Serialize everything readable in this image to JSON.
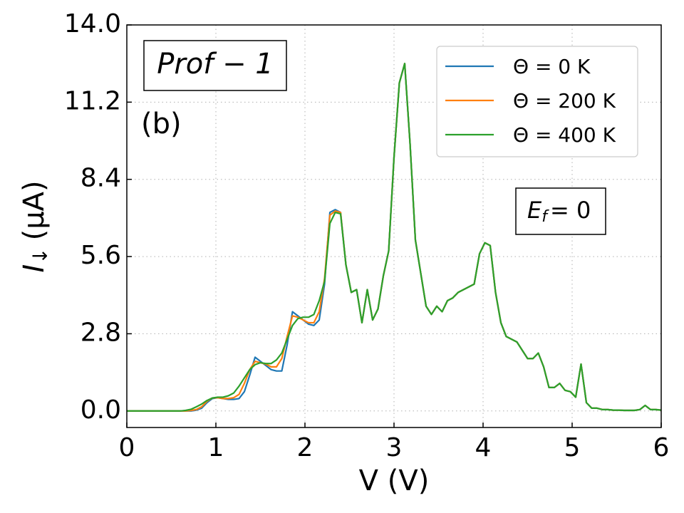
{
  "chart_data": {
    "type": "line",
    "x_label": "V (V)",
    "y_label": {
      "symbol": "I",
      "subscript": "↓",
      "unit": "(μA)"
    },
    "annotations": {
      "profile": "Prof − 1",
      "panel": "(b)",
      "energy": {
        "symbol": "E",
        "subscript": "f",
        "text": "= 0"
      }
    },
    "xlim": [
      0,
      6
    ],
    "xticks": [
      0,
      1,
      2,
      3,
      4,
      5,
      6
    ],
    "ylim": [
      -0.6,
      14
    ],
    "yticks": [
      {
        "value": 0,
        "label": "0.0"
      },
      2.8,
      5.6,
      8.4,
      11.2,
      {
        "value": 14,
        "label": "14.0"
      }
    ],
    "grid": true,
    "legend": "upper right",
    "x": [
      0,
      0.06,
      0.12,
      0.18,
      0.24,
      0.3,
      0.36,
      0.42,
      0.48,
      0.54,
      0.6,
      0.66,
      0.72,
      0.78,
      0.84,
      0.9,
      0.96,
      1.02,
      1.08,
      1.14,
      1.2,
      1.26,
      1.32,
      1.38,
      1.44,
      1.5,
      1.56,
      1.62,
      1.68,
      1.74,
      1.8,
      1.86,
      1.92,
      1.98,
      2.04,
      2.1,
      2.16,
      2.22,
      2.28,
      2.34,
      2.4,
      2.46,
      2.52,
      2.58,
      2.64,
      2.7,
      2.76,
      2.82,
      2.88,
      2.94,
      3.0,
      3.06,
      3.12,
      3.18,
      3.24,
      3.3,
      3.36,
      3.42,
      3.48,
      3.54,
      3.6,
      3.66,
      3.72,
      3.78,
      3.84,
      3.9,
      3.96,
      4.02,
      4.08,
      4.14,
      4.2,
      4.26,
      4.32,
      4.38,
      4.44,
      4.5,
      4.56,
      4.62,
      4.68,
      4.74,
      4.8,
      4.86,
      4.92,
      4.98,
      5.04,
      5.1,
      5.16,
      5.22,
      5.28,
      5.34,
      5.4,
      5.46,
      5.52,
      5.58,
      5.64,
      5.7,
      5.76,
      5.82,
      5.88,
      5.94,
      6.0
    ],
    "series": [
      {
        "name": "Θ = 0 K",
        "color": "#1f77b4",
        "values": [
          0,
          0,
          0,
          0,
          0,
          0,
          0,
          0,
          0,
          0,
          0,
          0,
          0,
          0.03,
          0.1,
          0.3,
          0.45,
          0.48,
          0.45,
          0.42,
          0.42,
          0.45,
          0.7,
          1.3,
          1.95,
          1.8,
          1.65,
          1.5,
          1.45,
          1.45,
          2.4,
          3.6,
          3.45,
          3.3,
          3.15,
          3.1,
          3.3,
          4.6,
          7.2,
          7.3,
          7.2,
          5.3,
          4.3,
          4.4,
          3.2,
          4.4,
          3.3,
          3.7,
          4.9,
          5.8,
          9.2,
          11.9,
          12.6,
          9.7,
          6.2,
          5.0,
          3.8,
          3.5,
          3.8,
          3.6,
          4.0,
          4.1,
          4.3,
          4.4,
          4.5,
          4.6,
          5.7,
          6.1,
          6.0,
          4.3,
          3.2,
          2.7,
          2.6,
          2.5,
          2.2,
          1.9,
          1.9,
          2.1,
          1.6,
          0.85,
          0.85,
          1.0,
          0.75,
          0.7,
          0.5,
          1.7,
          0.3,
          0.1,
          0.1,
          0.05,
          0.05,
          0.03,
          0.03,
          0.02,
          0.02,
          0.02,
          0.05,
          0.2,
          0.05,
          0.05,
          0.03
        ]
      },
      {
        "name": "Θ = 200 K",
        "color": "#ff7f0e",
        "values": [
          0,
          0,
          0,
          0,
          0,
          0,
          0,
          0,
          0,
          0,
          0,
          0,
          0.02,
          0.05,
          0.15,
          0.35,
          0.47,
          0.48,
          0.45,
          0.45,
          0.48,
          0.6,
          1.0,
          1.5,
          1.8,
          1.75,
          1.7,
          1.6,
          1.6,
          1.9,
          2.7,
          3.45,
          3.4,
          3.3,
          3.2,
          3.2,
          3.6,
          4.8,
          7.1,
          7.25,
          7.2,
          5.3,
          4.3,
          4.4,
          3.2,
          4.4,
          3.3,
          3.7,
          4.9,
          5.8,
          9.2,
          11.9,
          12.6,
          9.7,
          6.2,
          5.0,
          3.8,
          3.5,
          3.8,
          3.6,
          4.0,
          4.1,
          4.3,
          4.4,
          4.5,
          4.6,
          5.7,
          6.1,
          6.0,
          4.3,
          3.2,
          2.7,
          2.6,
          2.5,
          2.2,
          1.9,
          1.9,
          2.1,
          1.6,
          0.85,
          0.85,
          1.0,
          0.75,
          0.7,
          0.5,
          1.7,
          0.3,
          0.1,
          0.1,
          0.05,
          0.05,
          0.03,
          0.03,
          0.02,
          0.02,
          0.02,
          0.05,
          0.2,
          0.05,
          0.05,
          0.03
        ]
      },
      {
        "name": "Θ = 400 K",
        "color": "#2ca02c",
        "values": [
          0,
          0,
          0,
          0,
          0,
          0,
          0,
          0,
          0,
          0,
          0,
          0.02,
          0.06,
          0.15,
          0.25,
          0.38,
          0.47,
          0.5,
          0.5,
          0.55,
          0.65,
          0.9,
          1.2,
          1.5,
          1.68,
          1.75,
          1.72,
          1.72,
          1.85,
          2.1,
          2.6,
          3.1,
          3.35,
          3.4,
          3.4,
          3.5,
          4.0,
          4.7,
          6.8,
          7.2,
          7.15,
          5.3,
          4.3,
          4.4,
          3.2,
          4.4,
          3.3,
          3.7,
          4.9,
          5.8,
          9.2,
          11.9,
          12.6,
          9.7,
          6.2,
          5.0,
          3.8,
          3.5,
          3.8,
          3.6,
          4.0,
          4.1,
          4.3,
          4.4,
          4.5,
          4.6,
          5.7,
          6.1,
          6.0,
          4.3,
          3.2,
          2.7,
          2.6,
          2.5,
          2.2,
          1.9,
          1.9,
          2.1,
          1.6,
          0.85,
          0.85,
          1.0,
          0.75,
          0.7,
          0.5,
          1.7,
          0.3,
          0.1,
          0.1,
          0.05,
          0.05,
          0.03,
          0.03,
          0.02,
          0.02,
          0.02,
          0.05,
          0.2,
          0.05,
          0.05,
          0.03
        ]
      }
    ]
  }
}
